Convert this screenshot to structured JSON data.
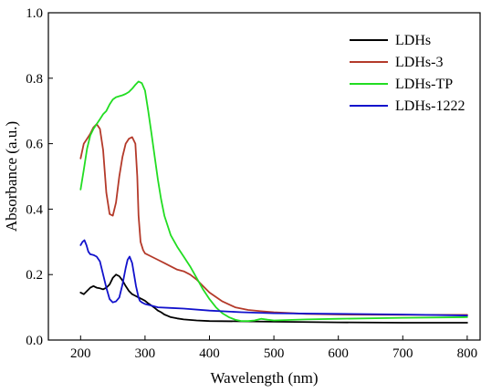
{
  "chart_data": {
    "type": "line",
    "title": "",
    "xlabel": "Wavelength (nm)",
    "ylabel": "Absorbance (a.u.)",
    "xlim": [
      150,
      820
    ],
    "ylim": [
      0.0,
      1.0
    ],
    "xticks": [
      200,
      300,
      400,
      500,
      600,
      700,
      800
    ],
    "yticks": [
      0.0,
      0.2,
      0.4,
      0.6,
      0.8,
      1.0
    ],
    "xtick_labels": [
      "200",
      "300",
      "400",
      "500",
      "600",
      "700",
      "800"
    ],
    "ytick_labels": [
      "0.0",
      "0.2",
      "0.4",
      "0.6",
      "0.8",
      "1.0"
    ],
    "grid": false,
    "legend_position": "top-right",
    "series": [
      {
        "name": "LDHs",
        "color": "#000000",
        "points": [
          [
            200,
            0.145
          ],
          [
            205,
            0.14
          ],
          [
            210,
            0.15
          ],
          [
            215,
            0.16
          ],
          [
            220,
            0.165
          ],
          [
            225,
            0.16
          ],
          [
            230,
            0.158
          ],
          [
            235,
            0.155
          ],
          [
            240,
            0.16
          ],
          [
            245,
            0.17
          ],
          [
            250,
            0.19
          ],
          [
            255,
            0.2
          ],
          [
            260,
            0.195
          ],
          [
            265,
            0.182
          ],
          [
            270,
            0.165
          ],
          [
            275,
            0.15
          ],
          [
            280,
            0.14
          ],
          [
            285,
            0.135
          ],
          [
            290,
            0.13
          ],
          [
            295,
            0.125
          ],
          [
            300,
            0.12
          ],
          [
            305,
            0.112
          ],
          [
            310,
            0.105
          ],
          [
            315,
            0.098
          ],
          [
            320,
            0.09
          ],
          [
            325,
            0.085
          ],
          [
            330,
            0.078
          ],
          [
            335,
            0.074
          ],
          [
            340,
            0.07
          ],
          [
            350,
            0.066
          ],
          [
            360,
            0.063
          ],
          [
            380,
            0.06
          ],
          [
            400,
            0.058
          ],
          [
            450,
            0.057
          ],
          [
            500,
            0.056
          ],
          [
            600,
            0.054
          ],
          [
            700,
            0.053
          ],
          [
            800,
            0.053
          ]
        ]
      },
      {
        "name": "LDHs-3",
        "color": "#b43a2a",
        "points": [
          [
            200,
            0.555
          ],
          [
            205,
            0.6
          ],
          [
            210,
            0.615
          ],
          [
            215,
            0.63
          ],
          [
            220,
            0.65
          ],
          [
            225,
            0.66
          ],
          [
            230,
            0.645
          ],
          [
            235,
            0.58
          ],
          [
            240,
            0.45
          ],
          [
            245,
            0.385
          ],
          [
            250,
            0.38
          ],
          [
            255,
            0.42
          ],
          [
            260,
            0.5
          ],
          [
            265,
            0.56
          ],
          [
            270,
            0.6
          ],
          [
            275,
            0.615
          ],
          [
            280,
            0.62
          ],
          [
            285,
            0.6
          ],
          [
            288,
            0.5
          ],
          [
            290,
            0.38
          ],
          [
            293,
            0.3
          ],
          [
            297,
            0.275
          ],
          [
            300,
            0.265
          ],
          [
            310,
            0.255
          ],
          [
            320,
            0.245
          ],
          [
            330,
            0.235
          ],
          [
            340,
            0.225
          ],
          [
            350,
            0.215
          ],
          [
            360,
            0.21
          ],
          [
            370,
            0.2
          ],
          [
            380,
            0.185
          ],
          [
            390,
            0.165
          ],
          [
            400,
            0.145
          ],
          [
            420,
            0.118
          ],
          [
            440,
            0.1
          ],
          [
            460,
            0.092
          ],
          [
            480,
            0.088
          ],
          [
            500,
            0.085
          ],
          [
            550,
            0.08
          ],
          [
            600,
            0.078
          ],
          [
            700,
            0.077
          ],
          [
            800,
            0.077
          ]
        ]
      },
      {
        "name": "LDHs-TP",
        "color": "#22dd22",
        "points": [
          [
            200,
            0.46
          ],
          [
            205,
            0.52
          ],
          [
            210,
            0.585
          ],
          [
            215,
            0.625
          ],
          [
            220,
            0.645
          ],
          [
            225,
            0.66
          ],
          [
            230,
            0.675
          ],
          [
            235,
            0.69
          ],
          [
            240,
            0.7
          ],
          [
            245,
            0.72
          ],
          [
            250,
            0.735
          ],
          [
            255,
            0.742
          ],
          [
            260,
            0.745
          ],
          [
            265,
            0.748
          ],
          [
            270,
            0.752
          ],
          [
            275,
            0.758
          ],
          [
            280,
            0.768
          ],
          [
            285,
            0.78
          ],
          [
            290,
            0.79
          ],
          [
            295,
            0.785
          ],
          [
            300,
            0.762
          ],
          [
            305,
            0.7
          ],
          [
            310,
            0.63
          ],
          [
            315,
            0.56
          ],
          [
            320,
            0.49
          ],
          [
            325,
            0.43
          ],
          [
            330,
            0.38
          ],
          [
            340,
            0.32
          ],
          [
            350,
            0.285
          ],
          [
            360,
            0.255
          ],
          [
            370,
            0.225
          ],
          [
            380,
            0.19
          ],
          [
            390,
            0.155
          ],
          [
            400,
            0.125
          ],
          [
            410,
            0.1
          ],
          [
            420,
            0.082
          ],
          [
            430,
            0.07
          ],
          [
            440,
            0.062
          ],
          [
            450,
            0.058
          ],
          [
            460,
            0.058
          ],
          [
            470,
            0.06
          ],
          [
            480,
            0.065
          ],
          [
            490,
            0.062
          ],
          [
            500,
            0.06
          ],
          [
            550,
            0.063
          ],
          [
            600,
            0.065
          ],
          [
            700,
            0.068
          ],
          [
            800,
            0.07
          ]
        ]
      },
      {
        "name": "LDHs-1222",
        "color": "#1212cc",
        "points": [
          [
            200,
            0.29
          ],
          [
            203,
            0.3
          ],
          [
            206,
            0.305
          ],
          [
            209,
            0.29
          ],
          [
            212,
            0.27
          ],
          [
            215,
            0.262
          ],
          [
            220,
            0.26
          ],
          [
            225,
            0.255
          ],
          [
            230,
            0.24
          ],
          [
            235,
            0.2
          ],
          [
            240,
            0.16
          ],
          [
            245,
            0.125
          ],
          [
            250,
            0.115
          ],
          [
            255,
            0.118
          ],
          [
            260,
            0.13
          ],
          [
            265,
            0.17
          ],
          [
            270,
            0.22
          ],
          [
            273,
            0.245
          ],
          [
            276,
            0.255
          ],
          [
            280,
            0.235
          ],
          [
            283,
            0.2
          ],
          [
            286,
            0.165
          ],
          [
            290,
            0.13
          ],
          [
            292,
            0.12
          ],
          [
            295,
            0.115
          ],
          [
            300,
            0.11
          ],
          [
            310,
            0.105
          ],
          [
            320,
            0.1
          ],
          [
            340,
            0.098
          ],
          [
            360,
            0.096
          ],
          [
            400,
            0.09
          ],
          [
            450,
            0.085
          ],
          [
            500,
            0.082
          ],
          [
            600,
            0.08
          ],
          [
            700,
            0.078
          ],
          [
            800,
            0.075
          ]
        ]
      }
    ]
  }
}
